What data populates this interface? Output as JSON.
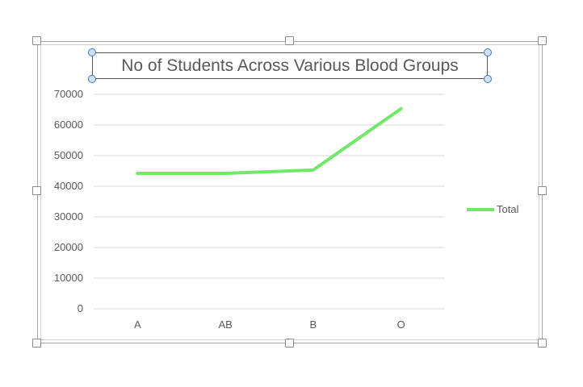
{
  "chart_data": {
    "type": "line",
    "title": "No of Students Across Various Blood Groups",
    "categories": [
      "A",
      "AB",
      "B",
      "O"
    ],
    "series": [
      {
        "name": "Total",
        "values": [
          44200,
          44200,
          45300,
          65300
        ]
      }
    ],
    "y_ticks": [
      "0",
      "10000",
      "20000",
      "30000",
      "40000",
      "50000",
      "60000",
      "70000"
    ],
    "ylim": [
      0,
      70000
    ],
    "grid": true,
    "legend_position": "right",
    "line_color": "#72e86a"
  }
}
